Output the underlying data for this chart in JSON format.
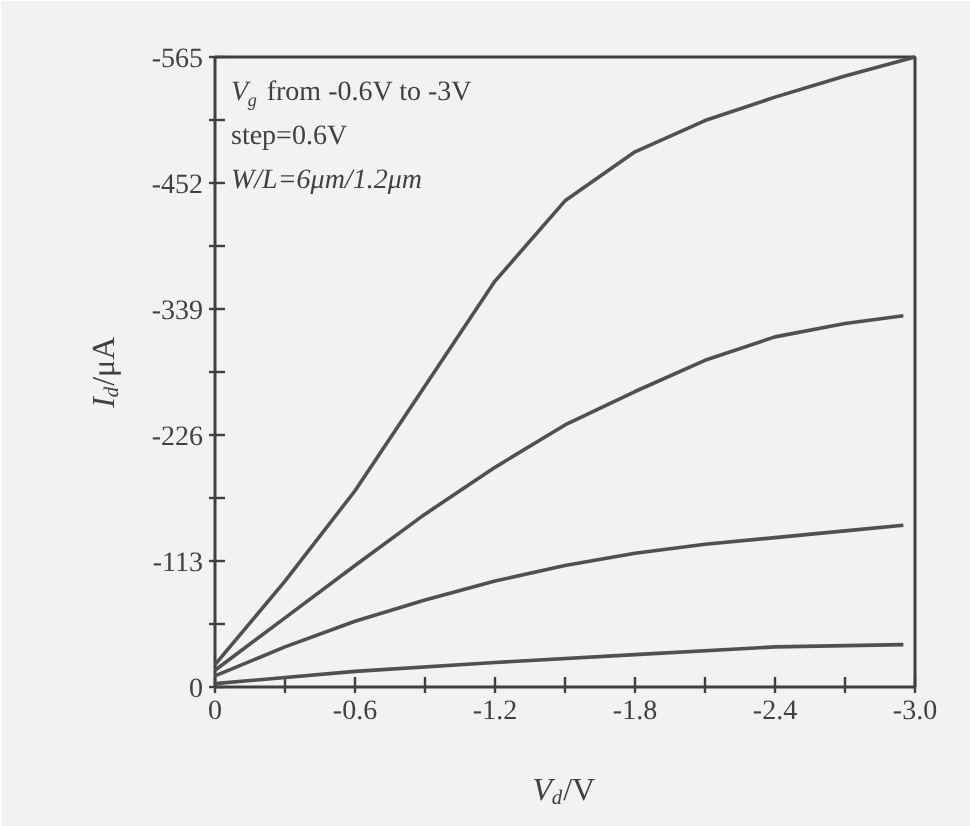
{
  "chart_data": {
    "type": "line",
    "xlabel": "V$_{d}$/V",
    "ylabel": "I$_{d}$/μA",
    "annotations": [
      "V$_{g}$ from -0.6V to -3V",
      "step=0.6V",
      "W/L=6μm/1.2μm"
    ],
    "xlim": [
      0,
      -3.0
    ],
    "ylim": [
      0,
      -565
    ],
    "xticks": [
      0,
      {
        "value": -0.3,
        "label": null
      },
      -0.6,
      {
        "value": -0.9,
        "label": null
      },
      -1.2,
      {
        "value": -1.5,
        "label": null
      },
      -1.8,
      {
        "value": -2.1,
        "label": null
      },
      -2.4,
      {
        "value": -2.7,
        "label": null
      },
      {
        "value": -3.0,
        "label": "-3.0"
      }
    ],
    "yticks": [
      0,
      {
        "value": -56.5,
        "label": null
      },
      -113,
      {
        "value": -169.5,
        "label": null
      },
      -226,
      {
        "value": -282.5,
        "label": null
      },
      -339,
      {
        "value": -395.5,
        "label": null
      },
      -452,
      {
        "value": -508.5,
        "label": null
      },
      -565
    ],
    "grid": false,
    "marker": "none",
    "line_style": "solid",
    "series": [
      {
        "color": "#505050",
        "x": [
          0,
          -0.3,
          -0.6,
          -0.9,
          -1.2,
          -1.5,
          -1.8,
          -2.1,
          -2.4,
          -2.7,
          -3.0
        ],
        "values": [
          -20,
          -95,
          -176,
          -270,
          -364,
          -436,
          -480,
          -508,
          -529,
          -548,
          -565
        ]
      },
      {
        "color": "#505050",
        "x": [
          0,
          -0.3,
          -0.6,
          -0.9,
          -1.2,
          -1.5,
          -1.8,
          -2.1,
          -2.4,
          -2.7,
          -2.95
        ],
        "values": [
          -15,
          -62,
          -109,
          -155,
          -197,
          -235,
          -265,
          -293,
          -314,
          -326,
          -333
        ]
      },
      {
        "color": "#505050",
        "x": [
          0,
          -0.3,
          -0.6,
          -0.9,
          -1.2,
          -1.5,
          -1.8,
          -2.1,
          -2.4,
          -2.7,
          -2.95
        ],
        "values": [
          -10,
          -36,
          -59,
          -78,
          -95,
          -109,
          -120,
          -128,
          -134,
          -140,
          -145
        ]
      },
      {
        "color": "#505050",
        "x": [
          0,
          -0.6,
          -1.2,
          -1.8,
          -2.4,
          -2.95
        ],
        "values": [
          -3,
          -14,
          -22,
          -29,
          -36,
          -38
        ]
      }
    ]
  }
}
